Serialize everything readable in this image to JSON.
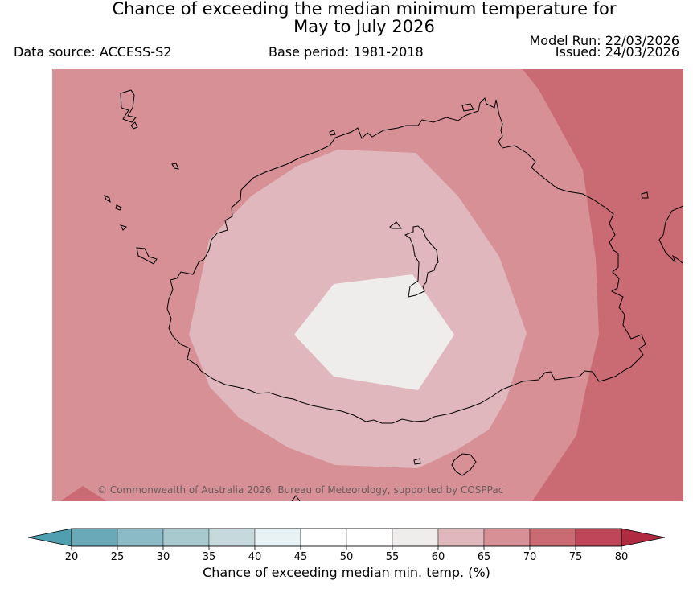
{
  "title": {
    "line1": "Chance of exceeding the median minimum temperature for",
    "line2": "May to July 2026"
  },
  "meta": {
    "data_source": "Data source: ACCESS-S2",
    "base_period": "Base period: 1981-2018",
    "model_run": "Model Run: 22/03/2026",
    "issued": "Issued: 24/03/2026"
  },
  "map": {
    "copyright": "© Commonwealth of Australia 2026, Bureau of Meteorology, supported by COSPPac",
    "shading": {
      "outer_band": "65-70",
      "edge_band": "70-75",
      "ring_band": "60-65",
      "center_band": "55-60"
    }
  },
  "colorbar": {
    "title": "Chance of exceeding median min. temp. (%)",
    "ticks": [
      "20",
      "25",
      "30",
      "35",
      "40",
      "45",
      "50",
      "55",
      "60",
      "65",
      "70",
      "75",
      "80"
    ],
    "colors": [
      "#6aaab8",
      "#8bbbc6",
      "#a8c9ce",
      "#c6dadd",
      "#e8f1f3",
      "#ffffff",
      "#ffffff",
      "#efedeb",
      "#e0b7bc",
      "#d69096",
      "#ca6a73",
      "#bf4658"
    ],
    "under_color": "#4f9fb0",
    "over_color": "#b02a41"
  },
  "colors": {
    "band_55_60": "#efedeb",
    "band_60_65": "#e0b7bc",
    "band_65_70": "#d69096",
    "band_70_75": "#ca6a73",
    "coastline": "#000000"
  }
}
